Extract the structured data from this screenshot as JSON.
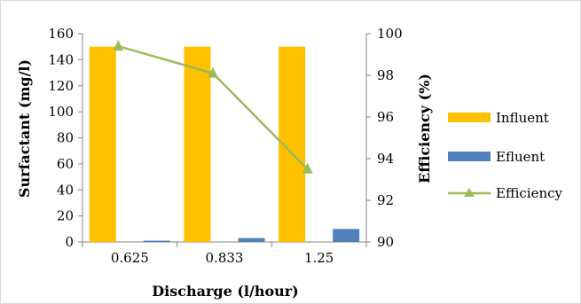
{
  "chart_data": {
    "type": "bar+line",
    "categories": [
      "0.625",
      "0.833",
      "1.25"
    ],
    "series": [
      {
        "name": "Influent",
        "type": "bar",
        "axis": "left",
        "color": "#FFC000",
        "values": [
          150,
          150,
          150
        ]
      },
      {
        "name": "Efluent",
        "type": "bar",
        "axis": "left",
        "color": "#4F81BD",
        "values": [
          1,
          3,
          10
        ]
      },
      {
        "name": "Efficiency",
        "type": "line",
        "marker": "triangle",
        "axis": "right",
        "color": "#9BBB59",
        "values": [
          99.4,
          98.1,
          93.5
        ]
      }
    ],
    "xlabel": "Discharge (l/hour)",
    "ylabel_left": "Surfactant (mg/l)",
    "ylabel_right": "Efficiency (%)",
    "ylim_left": [
      0,
      160
    ],
    "yticks_left": [
      0,
      20,
      40,
      60,
      80,
      100,
      120,
      140,
      160
    ],
    "ylim_right": [
      90,
      100
    ],
    "yticks_right": [
      90,
      92,
      94,
      96,
      98,
      100
    ],
    "grid": false,
    "legend_position": "right"
  }
}
